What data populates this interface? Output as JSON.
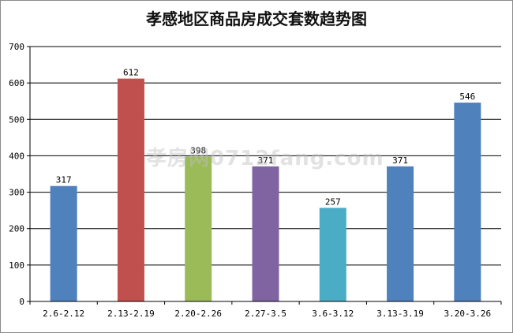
{
  "chart_data": {
    "type": "bar",
    "title": "孝感地区商品房成交套数趋势图",
    "categories": [
      "2.6-2.12",
      "2.13-2.19",
      "2.20-2.26",
      "2.27-3.5",
      "3.6-3.12",
      "3.13-3.19",
      "3.20-3.26"
    ],
    "values": [
      317,
      612,
      398,
      371,
      257,
      371,
      546
    ],
    "bar_colors": [
      "#4f81bd",
      "#c0504d",
      "#9bbb59",
      "#8064a2",
      "#4bacc6",
      "#4f81bd",
      "#4f81bd"
    ],
    "yticks": [
      0,
      100,
      200,
      300,
      400,
      500,
      600,
      700
    ],
    "ylim": [
      0,
      700
    ],
    "grid": true,
    "legend": "none",
    "xlabel": "",
    "ylabel": ""
  },
  "watermark": "孝房网0712fang.com"
}
